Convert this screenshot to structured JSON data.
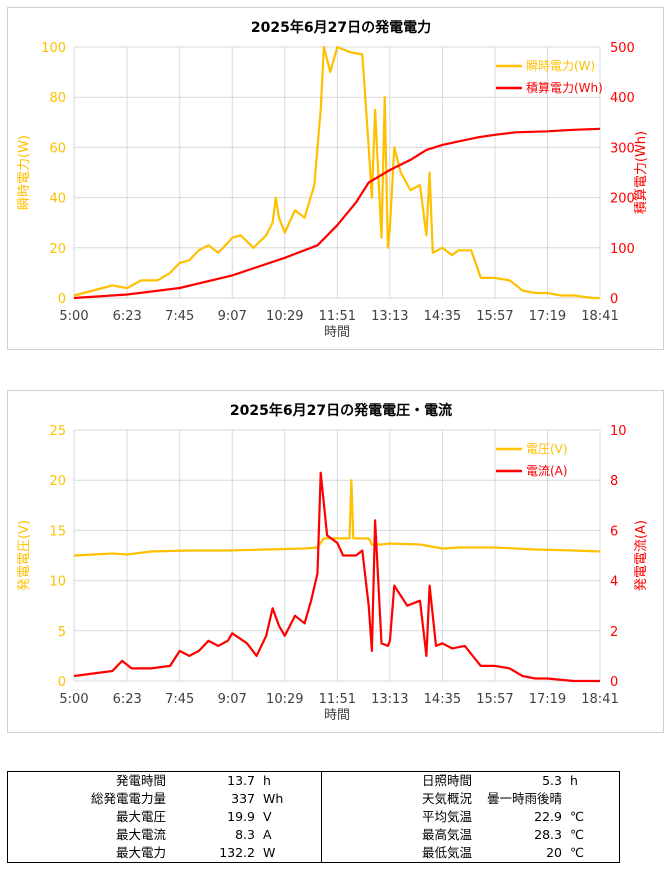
{
  "chart_data": [
    {
      "type": "line",
      "title": "2025年6月27日の発電電力",
      "xlabel": "時間",
      "x_ticks": [
        "5:00",
        "6:23",
        "7:45",
        "9:07",
        "10:29",
        "11:51",
        "13:13",
        "14:35",
        "15:57",
        "17:19",
        "18:41"
      ],
      "y_left_label": "瞬時電力(W)",
      "y_left_lim": [
        0,
        100
      ],
      "y_left_ticks": [
        "0",
        "20",
        "40",
        "60",
        "80",
        "100"
      ],
      "y_right_label": "積算電力(Wh)",
      "y_right_lim": [
        0,
        500
      ],
      "y_right_ticks": [
        "0",
        "100",
        "200",
        "300",
        "400",
        "500"
      ],
      "grid": true,
      "legend_position": "top-right",
      "series": [
        {
          "name": "瞬時電力(W)",
          "axis": "left",
          "color": "#FFC000",
          "points": [
            [
              "5:00",
              1
            ],
            [
              "5:30",
              3
            ],
            [
              "6:00",
              5
            ],
            [
              "6:23",
              4
            ],
            [
              "6:45",
              7
            ],
            [
              "7:10",
              7
            ],
            [
              "7:30",
              10
            ],
            [
              "7:45",
              14
            ],
            [
              "8:00",
              15
            ],
            [
              "8:15",
              19
            ],
            [
              "8:30",
              21
            ],
            [
              "8:45",
              18
            ],
            [
              "9:00",
              22
            ],
            [
              "9:07",
              24
            ],
            [
              "9:20",
              25
            ],
            [
              "9:40",
              20
            ],
            [
              "10:00",
              25
            ],
            [
              "10:10",
              30
            ],
            [
              "10:15",
              40
            ],
            [
              "10:20",
              32
            ],
            [
              "10:29",
              26
            ],
            [
              "10:45",
              35
            ],
            [
              "11:00",
              32
            ],
            [
              "11:15",
              45
            ],
            [
              "11:25",
              75
            ],
            [
              "11:30",
              100
            ],
            [
              "11:40",
              90
            ],
            [
              "11:51",
              100
            ],
            [
              "12:10",
              98
            ],
            [
              "12:30",
              97
            ],
            [
              "12:40",
              60
            ],
            [
              "12:45",
              40
            ],
            [
              "12:50",
              75
            ],
            [
              "13:00",
              24
            ],
            [
              "13:05",
              80
            ],
            [
              "13:10",
              20
            ],
            [
              "13:13",
              28
            ],
            [
              "13:20",
              60
            ],
            [
              "13:30",
              50
            ],
            [
              "13:45",
              43
            ],
            [
              "14:00",
              45
            ],
            [
              "14:10",
              25
            ],
            [
              "14:15",
              50
            ],
            [
              "14:20",
              18
            ],
            [
              "14:35",
              20
            ],
            [
              "14:50",
              17
            ],
            [
              "15:00",
              19
            ],
            [
              "15:20",
              19
            ],
            [
              "15:35",
              8
            ],
            [
              "15:57",
              8
            ],
            [
              "16:20",
              7
            ],
            [
              "16:40",
              3
            ],
            [
              "17:00",
              2
            ],
            [
              "17:19",
              2
            ],
            [
              "17:40",
              1
            ],
            [
              "18:00",
              1
            ],
            [
              "18:30",
              0
            ],
            [
              "18:41",
              0
            ]
          ]
        },
        {
          "name": "積算電力(Wh)",
          "axis": "right",
          "color": "#FF0000",
          "points": [
            [
              "5:00",
              0
            ],
            [
              "6:23",
              7
            ],
            [
              "7:45",
              20
            ],
            [
              "9:07",
              45
            ],
            [
              "10:29",
              80
            ],
            [
              "11:20",
              105
            ],
            [
              "11:51",
              145
            ],
            [
              "12:20",
              190
            ],
            [
              "12:40",
              230
            ],
            [
              "13:13",
              255
            ],
            [
              "13:45",
              275
            ],
            [
              "14:10",
              295
            ],
            [
              "14:35",
              305
            ],
            [
              "15:00",
              312
            ],
            [
              "15:30",
              320
            ],
            [
              "15:57",
              325
            ],
            [
              "16:30",
              330
            ],
            [
              "17:19",
              332
            ],
            [
              "18:00",
              335
            ],
            [
              "18:41",
              337
            ]
          ]
        }
      ]
    },
    {
      "type": "line",
      "title": "2025年6月27日の発電電圧・電流",
      "xlabel": "時間",
      "x_ticks": [
        "5:00",
        "6:23",
        "7:45",
        "9:07",
        "10:29",
        "11:51",
        "13:13",
        "14:35",
        "15:57",
        "17:19",
        "18:41"
      ],
      "y_left_label": "発電電圧(V)",
      "y_left_lim": [
        0,
        25
      ],
      "y_left_ticks": [
        "0",
        "5",
        "10",
        "15",
        "20",
        "25"
      ],
      "y_right_label": "発電電流(A)",
      "y_right_lim": [
        0,
        10
      ],
      "y_right_ticks": [
        "0",
        "2",
        "4",
        "6",
        "8",
        "10"
      ],
      "grid": true,
      "legend_position": "top-right",
      "series": [
        {
          "name": "電圧(V)",
          "axis": "left",
          "color": "#FFC000",
          "points": [
            [
              "5:00",
              12.5
            ],
            [
              "6:00",
              12.7
            ],
            [
              "6:23",
              12.6
            ],
            [
              "7:00",
              12.9
            ],
            [
              "8:00",
              13
            ],
            [
              "9:00",
              13
            ],
            [
              "10:00",
              13.1
            ],
            [
              "11:00",
              13.2
            ],
            [
              "11:20",
              13.3
            ],
            [
              "11:30",
              14.2
            ],
            [
              "12:00",
              14.2
            ],
            [
              "12:10",
              14.2
            ],
            [
              "12:13",
              20
            ],
            [
              "12:16",
              14.2
            ],
            [
              "12:40",
              14.2
            ],
            [
              "12:45",
              13.6
            ],
            [
              "13:00",
              13.6
            ],
            [
              "13:13",
              13.7
            ],
            [
              "14:00",
              13.6
            ],
            [
              "14:35",
              13.2
            ],
            [
              "15:00",
              13.3
            ],
            [
              "15:57",
              13.3
            ],
            [
              "17:00",
              13.1
            ],
            [
              "18:00",
              13
            ],
            [
              "18:41",
              12.9
            ]
          ]
        },
        {
          "name": "電流(A)",
          "axis": "right",
          "color": "#FF0000",
          "points": [
            [
              "5:00",
              0.2
            ],
            [
              "5:30",
              0.3
            ],
            [
              "6:00",
              0.4
            ],
            [
              "6:15",
              0.8
            ],
            [
              "6:30",
              0.5
            ],
            [
              "7:00",
              0.5
            ],
            [
              "7:30",
              0.6
            ],
            [
              "7:45",
              1.2
            ],
            [
              "8:00",
              1.0
            ],
            [
              "8:15",
              1.2
            ],
            [
              "8:30",
              1.6
            ],
            [
              "8:45",
              1.4
            ],
            [
              "9:00",
              1.6
            ],
            [
              "9:07",
              1.9
            ],
            [
              "9:30",
              1.5
            ],
            [
              "9:45",
              1.0
            ],
            [
              "10:00",
              1.8
            ],
            [
              "10:10",
              2.9
            ],
            [
              "10:20",
              2.2
            ],
            [
              "10:29",
              1.8
            ],
            [
              "10:45",
              2.6
            ],
            [
              "11:00",
              2.3
            ],
            [
              "11:10",
              3.2
            ],
            [
              "11:20",
              4.3
            ],
            [
              "11:25",
              8.3
            ],
            [
              "11:35",
              5.8
            ],
            [
              "11:51",
              5.5
            ],
            [
              "12:00",
              5.0
            ],
            [
              "12:20",
              5.0
            ],
            [
              "12:30",
              5.2
            ],
            [
              "12:40",
              3.0
            ],
            [
              "12:45",
              1.2
            ],
            [
              "12:50",
              6.4
            ],
            [
              "13:00",
              1.5
            ],
            [
              "13:10",
              1.4
            ],
            [
              "13:13",
              1.6
            ],
            [
              "13:20",
              3.8
            ],
            [
              "13:40",
              3.0
            ],
            [
              "14:00",
              3.2
            ],
            [
              "14:10",
              1.0
            ],
            [
              "14:15",
              3.8
            ],
            [
              "14:25",
              1.4
            ],
            [
              "14:35",
              1.5
            ],
            [
              "14:50",
              1.3
            ],
            [
              "15:10",
              1.4
            ],
            [
              "15:35",
              0.6
            ],
            [
              "15:57",
              0.6
            ],
            [
              "16:20",
              0.5
            ],
            [
              "16:40",
              0.2
            ],
            [
              "17:00",
              0.1
            ],
            [
              "17:19",
              0.1
            ],
            [
              "18:00",
              0
            ],
            [
              "18:41",
              0
            ]
          ]
        }
      ]
    }
  ],
  "summary": {
    "rows": [
      {
        "label1": "発電時間",
        "value1": "13.7",
        "unit1": "h",
        "label2": "日照時間",
        "value2": "5.3",
        "unit2": "h"
      },
      {
        "label1": "総発電電力量",
        "value1": "337",
        "unit1": "Wh",
        "label2": "天気概況",
        "value2": "曇一時雨後晴",
        "unit2": ""
      },
      {
        "label1": "最大電圧",
        "value1": "19.9",
        "unit1": "V",
        "label2": "平均気温",
        "value2": "22.9",
        "unit2": "℃"
      },
      {
        "label1": "最大電流",
        "value1": "8.3",
        "unit1": "A",
        "label2": "最高気温",
        "value2": "28.3",
        "unit2": "℃"
      },
      {
        "label1": "最大電力",
        "value1": "132.2",
        "unit1": "W",
        "label2": "最低気温",
        "value2": "20",
        "unit2": "℃"
      }
    ]
  }
}
